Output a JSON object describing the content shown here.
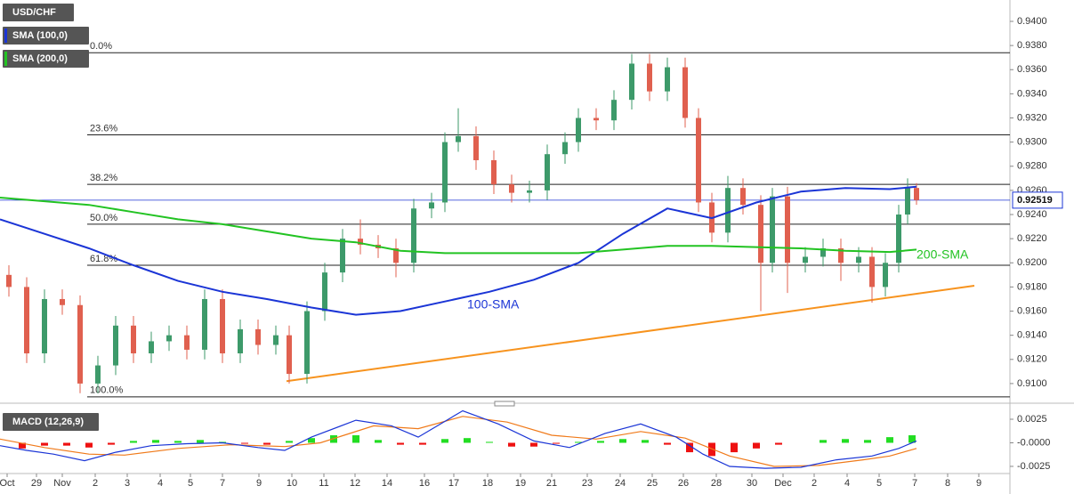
{
  "chart_data": [
    {
      "type": "candlestick",
      "title": "USD/CHF",
      "x": [
        1,
        3,
        5,
        7,
        9,
        11,
        13,
        15,
        17,
        19,
        21,
        23,
        25,
        27,
        29,
        31,
        32.5,
        34.5,
        36.5,
        38.5,
        40.5,
        42.5,
        44.5,
        46.5,
        48.5,
        50,
        51.5,
        53.5,
        55.5,
        57.5,
        59.5,
        61.5,
        63.5,
        65,
        67,
        69,
        71,
        73,
        75,
        77,
        78.5,
        80,
        81.8,
        83.5,
        85.5,
        86.8,
        88.5,
        90.5,
        92.5,
        94.5,
        96.5,
        98,
        99.5,
        101,
        102,
        103
      ],
      "open": [
        0.919,
        0.918,
        0.9125,
        0.917,
        0.9165,
        0.91,
        0.9115,
        0.9148,
        0.9125,
        0.9135,
        0.914,
        0.9128,
        0.917,
        0.9125,
        0.9145,
        0.9132,
        0.914,
        0.9108,
        0.916,
        0.9192,
        0.922,
        0.9215,
        0.9212,
        0.92,
        0.9245,
        0.925,
        0.93,
        0.9305,
        0.9285,
        0.9265,
        0.9258,
        0.926,
        0.929,
        0.93,
        0.932,
        0.9318,
        0.9335,
        0.9365,
        0.9342,
        0.9362,
        0.932,
        0.925,
        0.9225,
        0.9262,
        0.9248,
        0.92,
        0.9255,
        0.92,
        0.9205,
        0.9212,
        0.92,
        0.9205,
        0.918,
        0.92,
        0.924,
        0.9262
      ],
      "high": [
        0.9198,
        0.9188,
        0.9178,
        0.9178,
        0.9173,
        0.9123,
        0.9156,
        0.9156,
        0.9143,
        0.9148,
        0.9148,
        0.9178,
        0.9178,
        0.9153,
        0.9153,
        0.9148,
        0.9148,
        0.9168,
        0.92,
        0.9228,
        0.9236,
        0.9223,
        0.922,
        0.9253,
        0.9258,
        0.9308,
        0.9328,
        0.9313,
        0.9293,
        0.9273,
        0.9268,
        0.9298,
        0.9308,
        0.9328,
        0.9328,
        0.9343,
        0.9373,
        0.9373,
        0.937,
        0.937,
        0.9328,
        0.9258,
        0.9272,
        0.927,
        0.9256,
        0.9262,
        0.9263,
        0.9213,
        0.922,
        0.922,
        0.9213,
        0.9213,
        0.9208,
        0.9248,
        0.927,
        0.9266
      ],
      "low": [
        0.9172,
        0.9117,
        0.9117,
        0.9157,
        0.9092,
        0.9092,
        0.9107,
        0.9117,
        0.9117,
        0.9127,
        0.912,
        0.912,
        0.9117,
        0.9117,
        0.9124,
        0.9124,
        0.91,
        0.91,
        0.9152,
        0.9184,
        0.9207,
        0.9204,
        0.9188,
        0.9192,
        0.9237,
        0.9242,
        0.9292,
        0.9277,
        0.9257,
        0.925,
        0.925,
        0.9252,
        0.9282,
        0.9292,
        0.931,
        0.931,
        0.9327,
        0.9334,
        0.9334,
        0.9312,
        0.9242,
        0.9217,
        0.9217,
        0.924,
        0.916,
        0.9192,
        0.9175,
        0.9192,
        0.9197,
        0.9185,
        0.9192,
        0.9167,
        0.9172,
        0.9192,
        0.9232,
        0.9248
      ],
      "close": [
        0.918,
        0.9125,
        0.917,
        0.9165,
        0.91,
        0.9115,
        0.9148,
        0.9125,
        0.9135,
        0.914,
        0.9128,
        0.917,
        0.9125,
        0.9145,
        0.9132,
        0.914,
        0.9108,
        0.916,
        0.9192,
        0.922,
        0.9215,
        0.9212,
        0.92,
        0.9245,
        0.925,
        0.93,
        0.9305,
        0.9285,
        0.9265,
        0.9258,
        0.926,
        0.929,
        0.93,
        0.932,
        0.9318,
        0.9335,
        0.9365,
        0.9342,
        0.9362,
        0.932,
        0.925,
        0.9225,
        0.9262,
        0.9248,
        0.92,
        0.9255,
        0.92,
        0.9205,
        0.9212,
        0.92,
        0.9205,
        0.918,
        0.92,
        0.924,
        0.9262,
        0.92519
      ],
      "up_color": "#3d9a6a",
      "down_color": "#e0604f",
      "xlim": [
        0,
        113.5
      ],
      "ylim": [
        0.90874,
        0.94177
      ],
      "yticks": [
        {
          "value": 0.91,
          "label": "0.9100"
        },
        {
          "value": 0.912,
          "label": "0.9120"
        },
        {
          "value": 0.914,
          "label": "0.9140"
        },
        {
          "value": 0.916,
          "label": "0.9160"
        },
        {
          "value": 0.918,
          "label": "0.9180"
        },
        {
          "value": 0.92,
          "label": "0.9200"
        },
        {
          "value": 0.922,
          "label": "0.9220"
        },
        {
          "value": 0.924,
          "label": "0.9240"
        },
        {
          "value": 0.926,
          "label": "0.9260"
        },
        {
          "value": 0.928,
          "label": "0.9280"
        },
        {
          "value": 0.93,
          "label": "0.9300"
        },
        {
          "value": 0.932,
          "label": "0.9320"
        },
        {
          "value": 0.934,
          "label": "0.9340"
        },
        {
          "value": 0.936,
          "label": "0.9360"
        },
        {
          "value": 0.938,
          "label": "0.9380"
        },
        {
          "value": 0.94,
          "label": "0.9400"
        }
      ],
      "lines": [
        {
          "name": "SMA (100,0)",
          "label": "100-SMA",
          "color": "#1b35d6",
          "x": [
            0,
            5,
            10,
            15,
            20,
            25,
            30,
            35,
            40,
            45,
            50,
            55,
            60,
            65,
            70,
            75,
            80,
            85,
            90,
            95,
            100,
            103
          ],
          "values": [
            0.9236,
            0.9224,
            0.9212,
            0.9198,
            0.9185,
            0.9176,
            0.917,
            0.9163,
            0.9157,
            0.916,
            0.9168,
            0.9176,
            0.9186,
            0.92,
            0.9224,
            0.9245,
            0.9237,
            0.925,
            0.9259,
            0.9262,
            0.9261,
            0.9263
          ]
        },
        {
          "name": "SMA (200,0)",
          "label": "200-SMA",
          "color": "#22c322",
          "x": [
            0,
            10,
            15,
            20,
            25,
            30,
            35,
            40,
            45,
            50,
            60,
            65,
            70,
            75,
            80,
            85,
            90,
            95,
            100,
            103
          ],
          "values": [
            0.9254,
            0.9248,
            0.9242,
            0.9236,
            0.9232,
            0.9226,
            0.922,
            0.9217,
            0.921,
            0.9208,
            0.9208,
            0.9208,
            0.9211,
            0.9214,
            0.9214,
            0.9213,
            0.9212,
            0.921,
            0.9209,
            0.9211
          ]
        }
      ],
      "trendline": {
        "color": "#f7931e",
        "x": [
          32.2,
          109.5
        ],
        "values": [
          0.9102,
          0.9181
        ]
      },
      "fibonacci": [
        {
          "label": "0.0%",
          "value": 0.9374
        },
        {
          "label": "23.6%",
          "value": 0.9306
        },
        {
          "label": "38.2%",
          "value": 0.9265
        },
        {
          "label": "50.0%",
          "value": 0.9232
        },
        {
          "label": "61.8%",
          "value": 0.9198
        },
        {
          "label": "100.0%",
          "value": 0.9089
        }
      ],
      "last_price": 0.92519
    },
    {
      "type": "macd",
      "title": "MACD (12,26,9)",
      "xlim": [
        0,
        113.5
      ],
      "ylim": [
        -0.00307,
        0.00354
      ],
      "yticks": [
        {
          "value": 0.0025,
          "label": "0.0025"
        },
        {
          "value": 0,
          "label": "-0.0000"
        },
        {
          "value": -0.0025,
          "label": "-0.0025"
        }
      ],
      "xticks": [
        {
          "value": 0.8,
          "label": "Oct"
        },
        {
          "value": 4.1,
          "label": "29"
        },
        {
          "value": 7.0,
          "label": "Nov"
        },
        {
          "value": 10.7,
          "label": "2"
        },
        {
          "value": 14.3,
          "label": "3"
        },
        {
          "value": 18.0,
          "label": "4"
        },
        {
          "value": 21.4,
          "label": "5"
        },
        {
          "value": 25.0,
          "label": "7"
        },
        {
          "value": 29.1,
          "label": "9"
        },
        {
          "value": 32.8,
          "label": "10"
        },
        {
          "value": 36.4,
          "label": "11"
        },
        {
          "value": 39.9,
          "label": "12"
        },
        {
          "value": 43.5,
          "label": "14"
        },
        {
          "value": 47.7,
          "label": "16"
        },
        {
          "value": 51.0,
          "label": "17"
        },
        {
          "value": 54.8,
          "label": "18"
        },
        {
          "value": 58.5,
          "label": "19"
        },
        {
          "value": 62.0,
          "label": "21"
        },
        {
          "value": 66.0,
          "label": "23"
        },
        {
          "value": 69.7,
          "label": "24"
        },
        {
          "value": 73.3,
          "label": "25"
        },
        {
          "value": 76.8,
          "label": "26"
        },
        {
          "value": 80.5,
          "label": "28"
        },
        {
          "value": 84.5,
          "label": "30"
        },
        {
          "value": 88.0,
          "label": "Dec"
        },
        {
          "value": 91.5,
          "label": "2"
        },
        {
          "value": 95.2,
          "label": "4"
        },
        {
          "value": 98.8,
          "label": "5"
        },
        {
          "value": 102.8,
          "label": "7"
        },
        {
          "value": 106.5,
          "label": "8"
        },
        {
          "value": 110.0,
          "label": "9"
        }
      ],
      "macd": {
        "color": "#1b35d6",
        "x": [
          0,
          3,
          6,
          9.5,
          13,
          17,
          21,
          25,
          29,
          32,
          35,
          40,
          44,
          47,
          52,
          56,
          60,
          64,
          68,
          72,
          76,
          79,
          82,
          86,
          90,
          94,
          98,
          101,
          103
        ],
        "values": [
          -0.0003,
          -0.0008,
          -0.0012,
          -0.0019,
          -0.001,
          -0.0003,
          -0.0001,
          0.0,
          -0.0005,
          -0.0008,
          0.0006,
          0.0024,
          0.0018,
          0.0006,
          0.0034,
          0.002,
          0.0002,
          -0.0005,
          0.001,
          0.002,
          0.0006,
          -0.0012,
          -0.0025,
          -0.0027,
          -0.0026,
          -0.0018,
          -0.0014,
          -0.0006,
          0.0002
        ]
      },
      "signal": {
        "color": "#f07a1a",
        "x": [
          0,
          5,
          10,
          14,
          20,
          26,
          32,
          36,
          42,
          47,
          52,
          57,
          62,
          67,
          72,
          77,
          82,
          87,
          92,
          97,
          100,
          103
        ],
        "values": [
          0.0004,
          -0.0005,
          -0.0012,
          -0.0013,
          -0.0006,
          -0.0002,
          -0.0004,
          0.0,
          0.0018,
          0.0015,
          0.0028,
          0.0022,
          0.0008,
          0.0004,
          0.0012,
          0.0005,
          -0.0014,
          -0.0025,
          -0.0024,
          -0.0018,
          -0.0014,
          -0.0006
        ]
      },
      "histogram": {
        "up_color": "#22dd22",
        "down_color": "#ee1111",
        "x": [
          2.5,
          5,
          7.5,
          10,
          12.5,
          15,
          17.5,
          20,
          22.5,
          25,
          27.5,
          30,
          32.5,
          35,
          37.5,
          40,
          42.5,
          45,
          47.5,
          50,
          52.5,
          55,
          57.5,
          60,
          62.5,
          65,
          67.5,
          70,
          72.5,
          75,
          77.5,
          80,
          82.5,
          85,
          87.5,
          92.5,
          95,
          97.5,
          100,
          102.5
        ],
        "values": [
          -0.0006,
          -0.0003,
          -0.0003,
          -0.0005,
          -0.0002,
          0.0002,
          0.0003,
          0.0002,
          0.0003,
          0.0001,
          -0.0001,
          -0.0002,
          0.0002,
          0.0005,
          0.0008,
          0.0008,
          0.0003,
          -0.0002,
          -0.0002,
          0.0004,
          0.0005,
          0.0001,
          -0.0004,
          -0.0004,
          -0.0001,
          0.0001,
          0.0002,
          0.0004,
          0.0003,
          -0.0002,
          -0.001,
          -0.0014,
          -0.001,
          -0.0006,
          -0.0002,
          0.0003,
          0.0004,
          0.0003,
          0.0006,
          0.0008
        ]
      }
    }
  ]
}
